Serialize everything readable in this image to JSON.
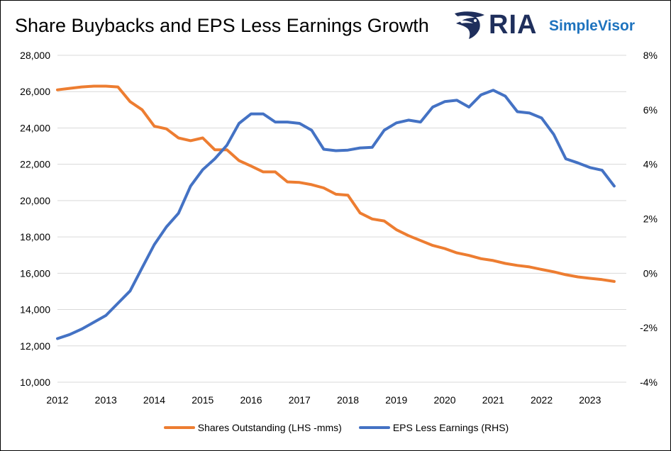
{
  "header": {
    "title": "Share Buybacks and EPS Less Earnings Growth",
    "logo_primary": "RIA",
    "logo_secondary": "SimpleVisor"
  },
  "colors": {
    "shares": "#ED7D31",
    "eps": "#4472C4",
    "grid": "#D9D9D9",
    "logo_navy": "#1F2F5C",
    "logo_blue": "#1E73BE"
  },
  "icons": {
    "logo": "eagle-head-icon"
  },
  "chart_data": {
    "type": "line",
    "title": "Share Buybacks and EPS Less Earnings Growth",
    "x_ticks": [
      "2012",
      "2013",
      "2014",
      "2015",
      "2016",
      "2017",
      "2018",
      "2019",
      "2020",
      "2021",
      "2022",
      "2023"
    ],
    "x_range": [
      2012,
      2023.75
    ],
    "y_left": {
      "range": [
        10000,
        28000
      ],
      "ticks": [
        10000,
        12000,
        14000,
        16000,
        18000,
        20000,
        22000,
        24000,
        26000,
        28000
      ],
      "tick_labels": [
        "10,000",
        "12,000",
        "14,000",
        "16,000",
        "18,000",
        "20,000",
        "22,000",
        "24,000",
        "26,000",
        "28,000"
      ]
    },
    "y_right": {
      "range": [
        -4,
        8
      ],
      "ticks": [
        -4,
        -2,
        0,
        2,
        4,
        6,
        8
      ],
      "tick_labels": [
        "-4%",
        "-2%",
        "0%",
        "2%",
        "4%",
        "6%",
        "8%"
      ]
    },
    "grid": true,
    "legend_position": "bottom",
    "series": [
      {
        "name": "Shares Outstanding (LHS -mms)",
        "axis": "left",
        "x": [
          2012,
          2012.25,
          2012.5,
          2012.75,
          2013,
          2013.25,
          2013.5,
          2013.75,
          2014,
          2014.25,
          2014.5,
          2014.75,
          2015,
          2015.25,
          2015.5,
          2015.75,
          2016,
          2016.25,
          2016.5,
          2016.75,
          2017,
          2017.25,
          2017.5,
          2017.75,
          2018,
          2018.25,
          2018.5,
          2018.75,
          2019,
          2019.25,
          2019.5,
          2019.75,
          2020,
          2020.25,
          2020.5,
          2020.75,
          2021,
          2021.25,
          2021.5,
          2021.75,
          2022,
          2022.25,
          2022.5,
          2022.75,
          2023,
          2023.25,
          2023.5
        ],
        "values": [
          26100,
          26180,
          26260,
          26300,
          26300,
          26260,
          25450,
          25000,
          24100,
          23950,
          23450,
          23300,
          23450,
          22800,
          22800,
          22200,
          21900,
          21580,
          21580,
          21030,
          21000,
          20880,
          20700,
          20350,
          20300,
          19320,
          18990,
          18880,
          18400,
          18070,
          17800,
          17530,
          17360,
          17120,
          16980,
          16800,
          16700,
          16540,
          16430,
          16350,
          16210,
          16080,
          15920,
          15800,
          15720,
          15650,
          15550
        ]
      },
      {
        "name": "EPS Less Earnings (RHS)",
        "axis": "right",
        "x": [
          2012,
          2012.25,
          2012.5,
          2012.75,
          2013,
          2013.25,
          2013.5,
          2013.75,
          2014,
          2014.25,
          2014.5,
          2014.75,
          2015,
          2015.25,
          2015.5,
          2015.75,
          2016,
          2016.25,
          2016.5,
          2016.75,
          2017,
          2017.25,
          2017.5,
          2017.75,
          2018,
          2018.25,
          2018.5,
          2018.75,
          2019,
          2019.25,
          2019.5,
          2019.75,
          2020,
          2020.25,
          2020.5,
          2020.75,
          2021,
          2021.25,
          2021.5,
          2021.75,
          2022,
          2022.25,
          2022.5,
          2022.75,
          2023,
          2023.25,
          2023.5
        ],
        "values": [
          -2.4,
          -2.25,
          -2.05,
          -1.8,
          -1.55,
          -1.1,
          -0.65,
          0.2,
          1.05,
          1.7,
          2.2,
          3.2,
          3.8,
          4.2,
          4.7,
          5.5,
          5.85,
          5.85,
          5.55,
          5.55,
          5.5,
          5.25,
          4.55,
          4.5,
          4.52,
          4.6,
          4.62,
          5.25,
          5.52,
          5.62,
          5.55,
          6.1,
          6.3,
          6.35,
          6.1,
          6.55,
          6.72,
          6.5,
          5.93,
          5.88,
          5.7,
          5.1,
          4.2,
          4.05,
          3.88,
          3.78,
          3.2
        ]
      }
    ]
  }
}
